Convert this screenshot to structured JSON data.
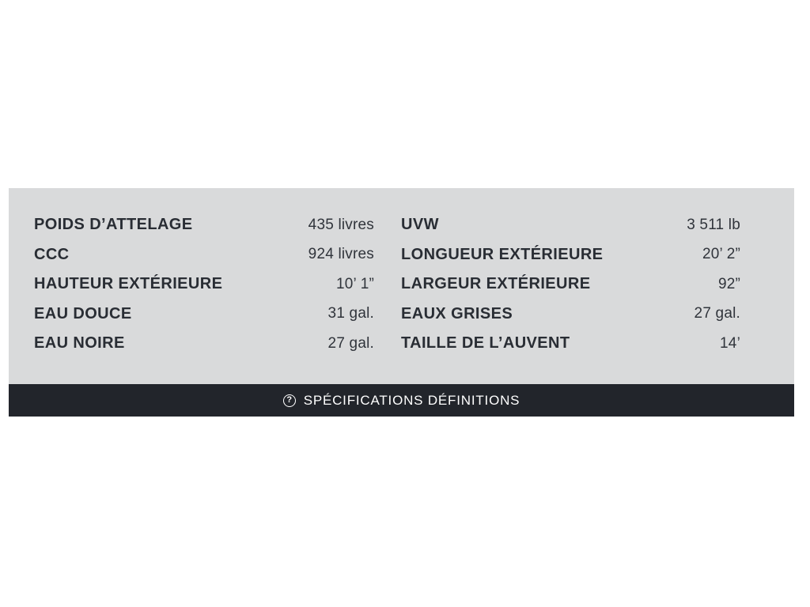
{
  "page": {
    "background_color": "#ffffff"
  },
  "spec_panel": {
    "background_color": "#d9dadb",
    "text_color": "#292d34",
    "columns": {
      "left": [
        {
          "label": "POIDS D’ATTELAGE",
          "value": "435 livres"
        },
        {
          "label": "CCC",
          "value": "924 livres"
        },
        {
          "label": "HAUTEUR EXTÉRIEURE",
          "value": "10’ 1”"
        },
        {
          "label": "EAU DOUCE",
          "value": "31 gal."
        },
        {
          "label": "EAU NOIRE",
          "value": "27 gal."
        }
      ],
      "right": [
        {
          "label": "UVW",
          "value": "3 511 lb"
        },
        {
          "label": "LONGUEUR EXTÉRIEURE",
          "value": "20’ 2”"
        },
        {
          "label": "LARGEUR EXTÉRIEURE",
          "value": "92”"
        },
        {
          "label": "EAUX GRISES",
          "value": "27 gal."
        },
        {
          "label": "TAILLE DE L’AUVENT",
          "value": "14’"
        }
      ]
    }
  },
  "definitions_bar": {
    "background_color": "#22252b",
    "text_color": "#ffffff",
    "icon": "question-mark-circle-icon",
    "icon_glyph": "?",
    "label": "SPÉCIFICATIONS DÉFINITIONS"
  }
}
